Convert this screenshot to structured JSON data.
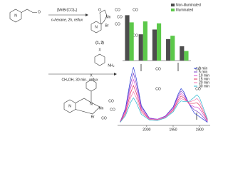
{
  "scheme": {
    "reagent": "[MnBr(CO)₅]",
    "condition1": "n-hexane, 2h, reflux",
    "compound_label": "(1, 2)",
    "condition2": "CH₃OH, 30 min., reflux",
    "atoms": [
      "N",
      "O",
      "N",
      "O",
      "Mn",
      "CO",
      "CO",
      "CO",
      "Br",
      "X",
      "NH₂",
      "N",
      "N",
      "Mn",
      "CO",
      "CO",
      "CO",
      "Br",
      "X"
    ]
  },
  "co_labels": [
    "CO",
    "CO",
    "CO",
    "CO",
    "CO",
    "CO"
  ],
  "chart_data": [
    {
      "type": "bar",
      "categories": [
        null,
        null,
        null,
        null,
        null
      ],
      "ylim": [
        0,
        100
      ],
      "series": [
        {
          "name": "Non-illuminated",
          "color": "#4d4d4d",
          "values": [
            95,
            55,
            65,
            45,
            30
          ]
        },
        {
          "name": "Illuminated",
          "color": "#5cc84a",
          "values": [
            80,
            82,
            78,
            52,
            20
          ]
        }
      ]
    },
    {
      "type": "line",
      "xlim": [
        2055,
        1880
      ],
      "ylim": [
        0,
        1
      ],
      "xticks": [
        2000,
        1950,
        1900
      ],
      "x": [
        2050,
        2040,
        2030,
        2025,
        2020,
        2010,
        1995,
        1980,
        1965,
        1950,
        1940,
        1935,
        1930,
        1920,
        1910,
        1905,
        1900,
        1885
      ],
      "series": [
        {
          "name": "0 min",
          "color": "#2b3fd6",
          "values": [
            0.06,
            0.28,
            0.78,
            0.95,
            0.78,
            0.32,
            0.12,
            0.1,
            0.15,
            0.3,
            0.52,
            0.6,
            0.55,
            0.35,
            0.2,
            0.17,
            0.14,
            0.05
          ]
        },
        {
          "name": "5 min",
          "color": "#7a3fc8",
          "values": [
            0.06,
            0.26,
            0.7,
            0.85,
            0.7,
            0.3,
            0.12,
            0.1,
            0.15,
            0.29,
            0.49,
            0.56,
            0.52,
            0.35,
            0.25,
            0.23,
            0.2,
            0.06
          ]
        },
        {
          "name": "10 min",
          "color": "#d84ad0",
          "values": [
            0.06,
            0.24,
            0.62,
            0.75,
            0.62,
            0.27,
            0.11,
            0.1,
            0.14,
            0.27,
            0.46,
            0.52,
            0.48,
            0.35,
            0.3,
            0.3,
            0.27,
            0.07
          ]
        },
        {
          "name": "15 min",
          "color": "#e0305a",
          "values": [
            0.05,
            0.21,
            0.54,
            0.65,
            0.54,
            0.24,
            0.1,
            0.09,
            0.13,
            0.25,
            0.42,
            0.48,
            0.45,
            0.36,
            0.36,
            0.37,
            0.33,
            0.08
          ]
        },
        {
          "name": "20 min",
          "color": "#f07ab0",
          "values": [
            0.05,
            0.18,
            0.46,
            0.55,
            0.46,
            0.21,
            0.1,
            0.09,
            0.13,
            0.24,
            0.39,
            0.44,
            0.42,
            0.38,
            0.41,
            0.44,
            0.39,
            0.09
          ]
        },
        {
          "name": "30 min",
          "color": "#2ab6d0",
          "values": [
            0.05,
            0.16,
            0.38,
            0.45,
            0.38,
            0.18,
            0.09,
            0.08,
            0.12,
            0.22,
            0.36,
            0.4,
            0.39,
            0.39,
            0.46,
            0.5,
            0.45,
            0.1
          ]
        }
      ]
    }
  ]
}
